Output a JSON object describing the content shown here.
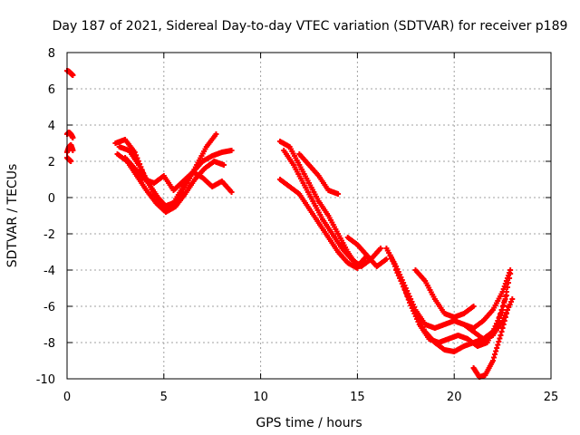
{
  "chart_data": {
    "type": "scatter",
    "title": "Day 187 of 2021, Sidereal Day-to-day VTEC variation (SDTVAR) for receiver p189",
    "xlabel": "GPS time / hours",
    "ylabel": "SDTVAR / TECUs",
    "xlim": [
      0,
      25
    ],
    "ylim": [
      -10,
      8
    ],
    "x_ticks": [
      0,
      5,
      10,
      15,
      20,
      25
    ],
    "y_ticks": [
      -10,
      -8,
      -6,
      -4,
      -2,
      0,
      2,
      4,
      6,
      8
    ],
    "grid": true,
    "marker": "+",
    "color": "#ff0000",
    "series": [
      {
        "name": "trace-a",
        "x": [
          0.0,
          0.1,
          0.2,
          0.3
        ],
        "y": [
          7.0,
          6.95,
          6.85,
          6.75
        ]
      },
      {
        "name": "trace-b",
        "x": [
          0.0,
          0.1,
          0.2,
          0.3
        ],
        "y": [
          3.5,
          3.6,
          3.5,
          3.3
        ]
      },
      {
        "name": "trace-c",
        "x": [
          0.0,
          0.1,
          0.2,
          0.3
        ],
        "y": [
          2.5,
          2.8,
          2.9,
          2.6
        ]
      },
      {
        "name": "trace-d",
        "x": [
          0.0,
          0.1,
          0.2
        ],
        "y": [
          2.2,
          2.1,
          2.0
        ]
      },
      {
        "name": "trace-e",
        "x": [
          2.5,
          3.0,
          3.5,
          4.0,
          4.5,
          5.0,
          5.5,
          6.0,
          6.5,
          7.0,
          7.5,
          8.0,
          8.5
        ],
        "y": [
          3.0,
          3.2,
          2.5,
          1.2,
          0.2,
          -0.5,
          -0.3,
          0.6,
          1.4,
          2.0,
          2.3,
          2.5,
          2.6
        ]
      },
      {
        "name": "trace-f",
        "x": [
          2.7,
          3.2,
          3.7,
          4.2,
          4.7,
          5.2,
          5.7,
          6.2,
          6.7,
          7.2,
          7.7
        ],
        "y": [
          2.8,
          2.6,
          1.8,
          0.8,
          0.0,
          -0.6,
          -0.2,
          0.8,
          1.8,
          2.8,
          3.5
        ]
      },
      {
        "name": "trace-g",
        "x": [
          2.6,
          3.1,
          3.6,
          4.1,
          4.6,
          5.1,
          5.6,
          6.1,
          6.6,
          7.1,
          7.6,
          8.1
        ],
        "y": [
          2.4,
          2.0,
          1.2,
          0.4,
          -0.3,
          -0.8,
          -0.5,
          0.2,
          1.0,
          1.6,
          2.0,
          1.8
        ]
      },
      {
        "name": "trace-h",
        "x": [
          3.0,
          3.5,
          4.0,
          4.5,
          5.0,
          5.5,
          6.0,
          6.5,
          7.0,
          7.5,
          8.0,
          8.5
        ],
        "y": [
          2.2,
          1.6,
          1.0,
          0.8,
          1.2,
          0.4,
          0.9,
          1.4,
          1.1,
          0.6,
          0.9,
          0.3
        ]
      },
      {
        "name": "trace-i",
        "x": [
          11.0,
          11.5,
          12.0,
          12.5,
          13.0,
          13.5,
          14.0,
          14.5,
          15.0,
          15.5
        ],
        "y": [
          3.1,
          2.8,
          1.8,
          0.8,
          -0.2,
          -1.0,
          -2.0,
          -3.0,
          -3.8,
          -3.2
        ]
      },
      {
        "name": "trace-j",
        "x": [
          11.2,
          11.7,
          12.2,
          12.7,
          13.2,
          13.7,
          14.2,
          14.7,
          15.2,
          15.7,
          16.2
        ],
        "y": [
          2.6,
          1.8,
          0.8,
          -0.2,
          -1.2,
          -2.0,
          -2.8,
          -3.4,
          -3.8,
          -3.4,
          -2.8
        ]
      },
      {
        "name": "trace-k",
        "x": [
          11.0,
          11.5,
          12.0,
          12.5,
          13.0,
          13.5,
          14.0,
          14.5,
          15.0
        ],
        "y": [
          1.0,
          0.6,
          0.2,
          -0.6,
          -1.4,
          -2.2,
          -3.0,
          -3.6,
          -3.9
        ]
      },
      {
        "name": "trace-l",
        "x": [
          12.0,
          12.5,
          13.0,
          13.5,
          14.0
        ],
        "y": [
          2.4,
          1.8,
          1.2,
          0.4,
          0.2
        ]
      },
      {
        "name": "trace-m",
        "x": [
          14.5,
          15.0,
          15.5,
          16.0,
          16.5
        ],
        "y": [
          -2.2,
          -2.6,
          -3.2,
          -3.8,
          -3.4
        ]
      },
      {
        "name": "trace-n",
        "x": [
          16.5,
          17.0,
          17.5,
          18.0,
          18.5,
          19.0,
          19.5,
          20.0,
          20.5,
          21.0,
          21.5,
          22.0,
          22.5,
          23.0
        ],
        "y": [
          -2.8,
          -3.8,
          -5.0,
          -6.2,
          -7.0,
          -7.2,
          -7.0,
          -6.8,
          -7.0,
          -7.4,
          -7.8,
          -7.6,
          -6.8,
          -5.6
        ]
      },
      {
        "name": "trace-o",
        "x": [
          16.7,
          17.2,
          17.7,
          18.2,
          18.7,
          19.2,
          19.7,
          20.2,
          20.7,
          21.2,
          21.7,
          22.2,
          22.7
        ],
        "y": [
          -3.2,
          -4.4,
          -5.8,
          -7.0,
          -7.8,
          -8.0,
          -7.8,
          -7.6,
          -7.8,
          -8.2,
          -8.0,
          -7.0,
          -5.4
        ]
      },
      {
        "name": "trace-p",
        "x": [
          17.0,
          17.5,
          18.0,
          18.5,
          19.0,
          19.5,
          20.0,
          20.5,
          21.0,
          21.5,
          22.0,
          22.5,
          22.9
        ],
        "y": [
          -4.0,
          -5.2,
          -6.4,
          -7.4,
          -8.0,
          -8.4,
          -8.5,
          -8.2,
          -8.0,
          -7.8,
          -7.4,
          -6.2,
          -4.2
        ]
      },
      {
        "name": "trace-q",
        "x": [
          18.0,
          18.5,
          19.0,
          19.5,
          20.0,
          20.5,
          21.0
        ],
        "y": [
          -4.0,
          -4.6,
          -5.6,
          -6.4,
          -6.6,
          -6.4,
          -6.0
        ]
      },
      {
        "name": "trace-r",
        "x": [
          21.0,
          21.3,
          21.6,
          22.0,
          22.4,
          22.8
        ],
        "y": [
          -9.4,
          -9.9,
          -9.8,
          -9.0,
          -7.6,
          -6.0
        ]
      },
      {
        "name": "trace-s",
        "x": [
          20.0,
          20.5,
          21.0,
          21.5,
          22.0,
          22.5,
          22.9
        ],
        "y": [
          -6.8,
          -7.0,
          -7.2,
          -6.8,
          -6.2,
          -5.2,
          -4.0
        ]
      }
    ]
  }
}
